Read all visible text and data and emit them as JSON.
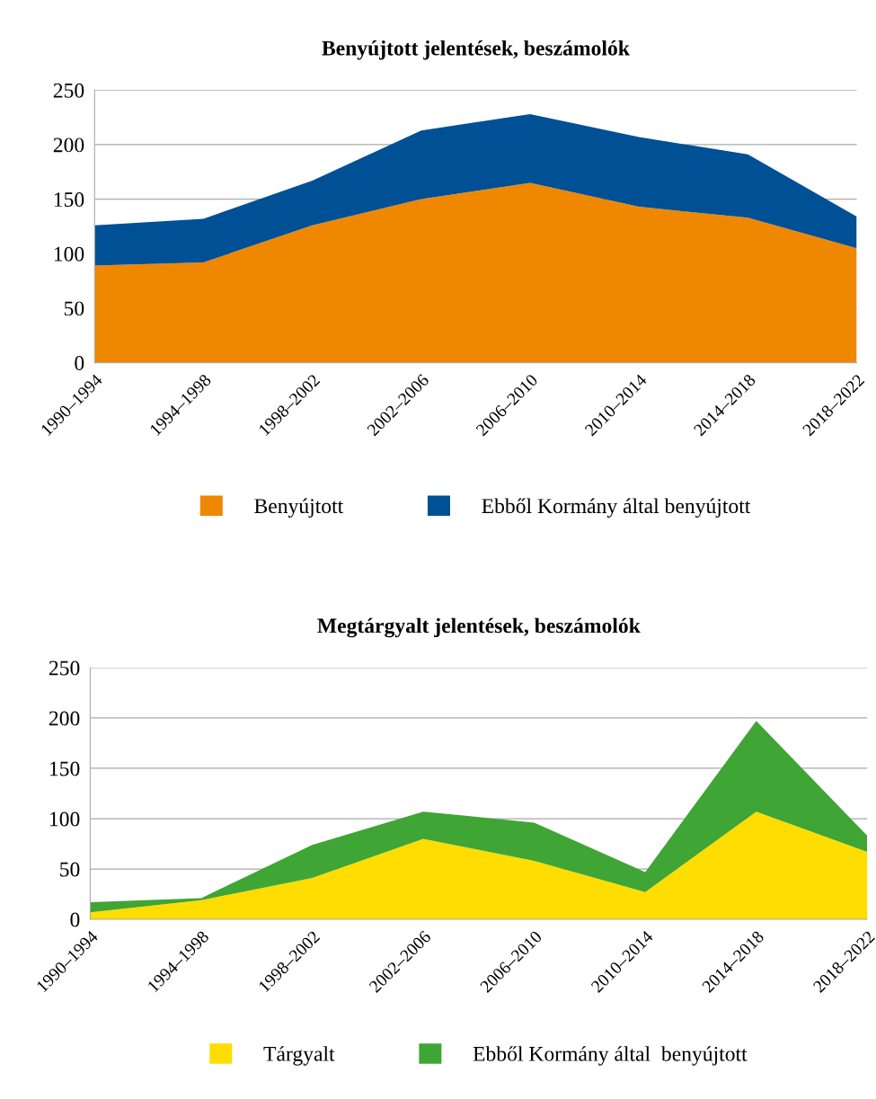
{
  "chart_data": [
    {
      "type": "area",
      "title": "Benyújtott jelentések, beszámolók",
      "stacked": true,
      "categories": [
        "1990–1994",
        "1994–1998",
        "1998–2002",
        "2002–2006",
        "2006–2010",
        "2010–2014",
        "2014–2018",
        "2018–2022"
      ],
      "series": [
        {
          "name": "Benyújtott",
          "color": "#f08700",
          "values": [
            89,
            92,
            126,
            150,
            165,
            143,
            133,
            105
          ]
        },
        {
          "name": "Ebből Kormány által benyújtott",
          "color": "#005096",
          "values": [
            37,
            40,
            41,
            63,
            63,
            64,
            58,
            29
          ]
        }
      ],
      "ylim": [
        0,
        250
      ],
      "yticks": [
        0,
        50,
        100,
        150,
        200,
        250
      ],
      "grid": "y",
      "legend": "bottom"
    },
    {
      "type": "area",
      "title": "Megtárgyalt jelentések, beszámolók",
      "stacked": true,
      "categories": [
        "1990–1994",
        "1994–1998",
        "1998–2002",
        "2002–2006",
        "2006–2010",
        "2010–2014",
        "2014–2018",
        "2018–2022"
      ],
      "series": [
        {
          "name": "Tárgyalt",
          "color": "#ffdd00",
          "values": [
            7,
            19,
            41,
            80,
            58,
            27,
            107,
            67
          ]
        },
        {
          "name": "Ebből Kormány által  benyújtott",
          "color": "#3fa535",
          "values": [
            10,
            2,
            33,
            27,
            38,
            20,
            90,
            16
          ]
        }
      ],
      "ylim": [
        0,
        250
      ],
      "yticks": [
        0,
        50,
        100,
        150,
        200,
        250
      ],
      "grid": "y",
      "legend": "bottom"
    }
  ]
}
